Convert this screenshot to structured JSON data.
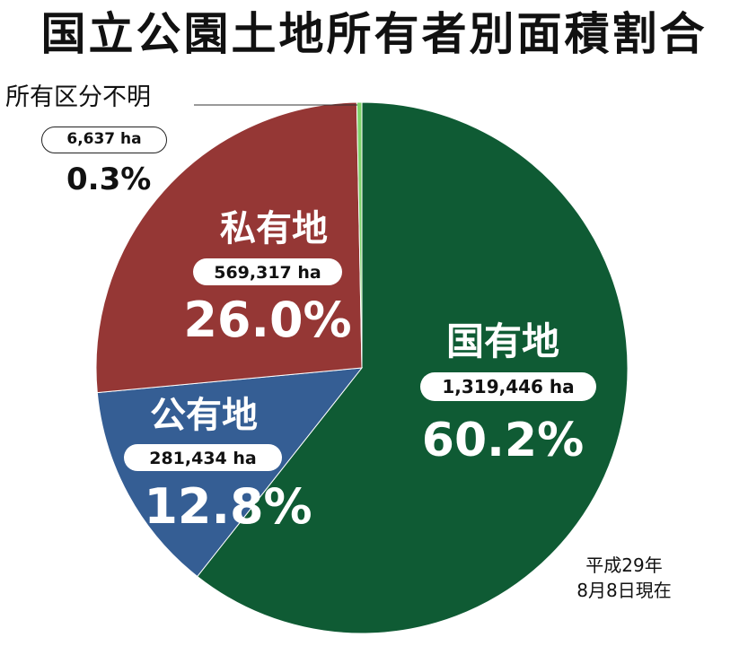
{
  "title": "国立公園土地所有者別面積割合",
  "note_line1": "平成29年",
  "note_line2": "8月8日現在",
  "chart_data": {
    "type": "pie",
    "title": "国立公園土地所有者別面積割合",
    "start": "12 o'clock, clockwise",
    "slices": [
      {
        "label": "国有地",
        "area": "1,319,446 ha",
        "area_value": 1319446,
        "percent_label": "60.2%",
        "percent": 60.2,
        "color": "#0f5b34"
      },
      {
        "label": "公有地",
        "area": "281,434 ha",
        "area_value": 281434,
        "percent_label": "12.8%",
        "percent": 12.8,
        "color": "#355e94"
      },
      {
        "label": "私有地",
        "area": "569,317 ha",
        "area_value": 569317,
        "percent_label": "26.0%",
        "percent": 26.0,
        "color": "#953735"
      },
      {
        "label": "所有区分不明",
        "area": "6,637 ha",
        "area_value": 6637,
        "percent_label": "0.3%",
        "percent": 0.3,
        "color": "#7fd36a"
      }
    ]
  }
}
